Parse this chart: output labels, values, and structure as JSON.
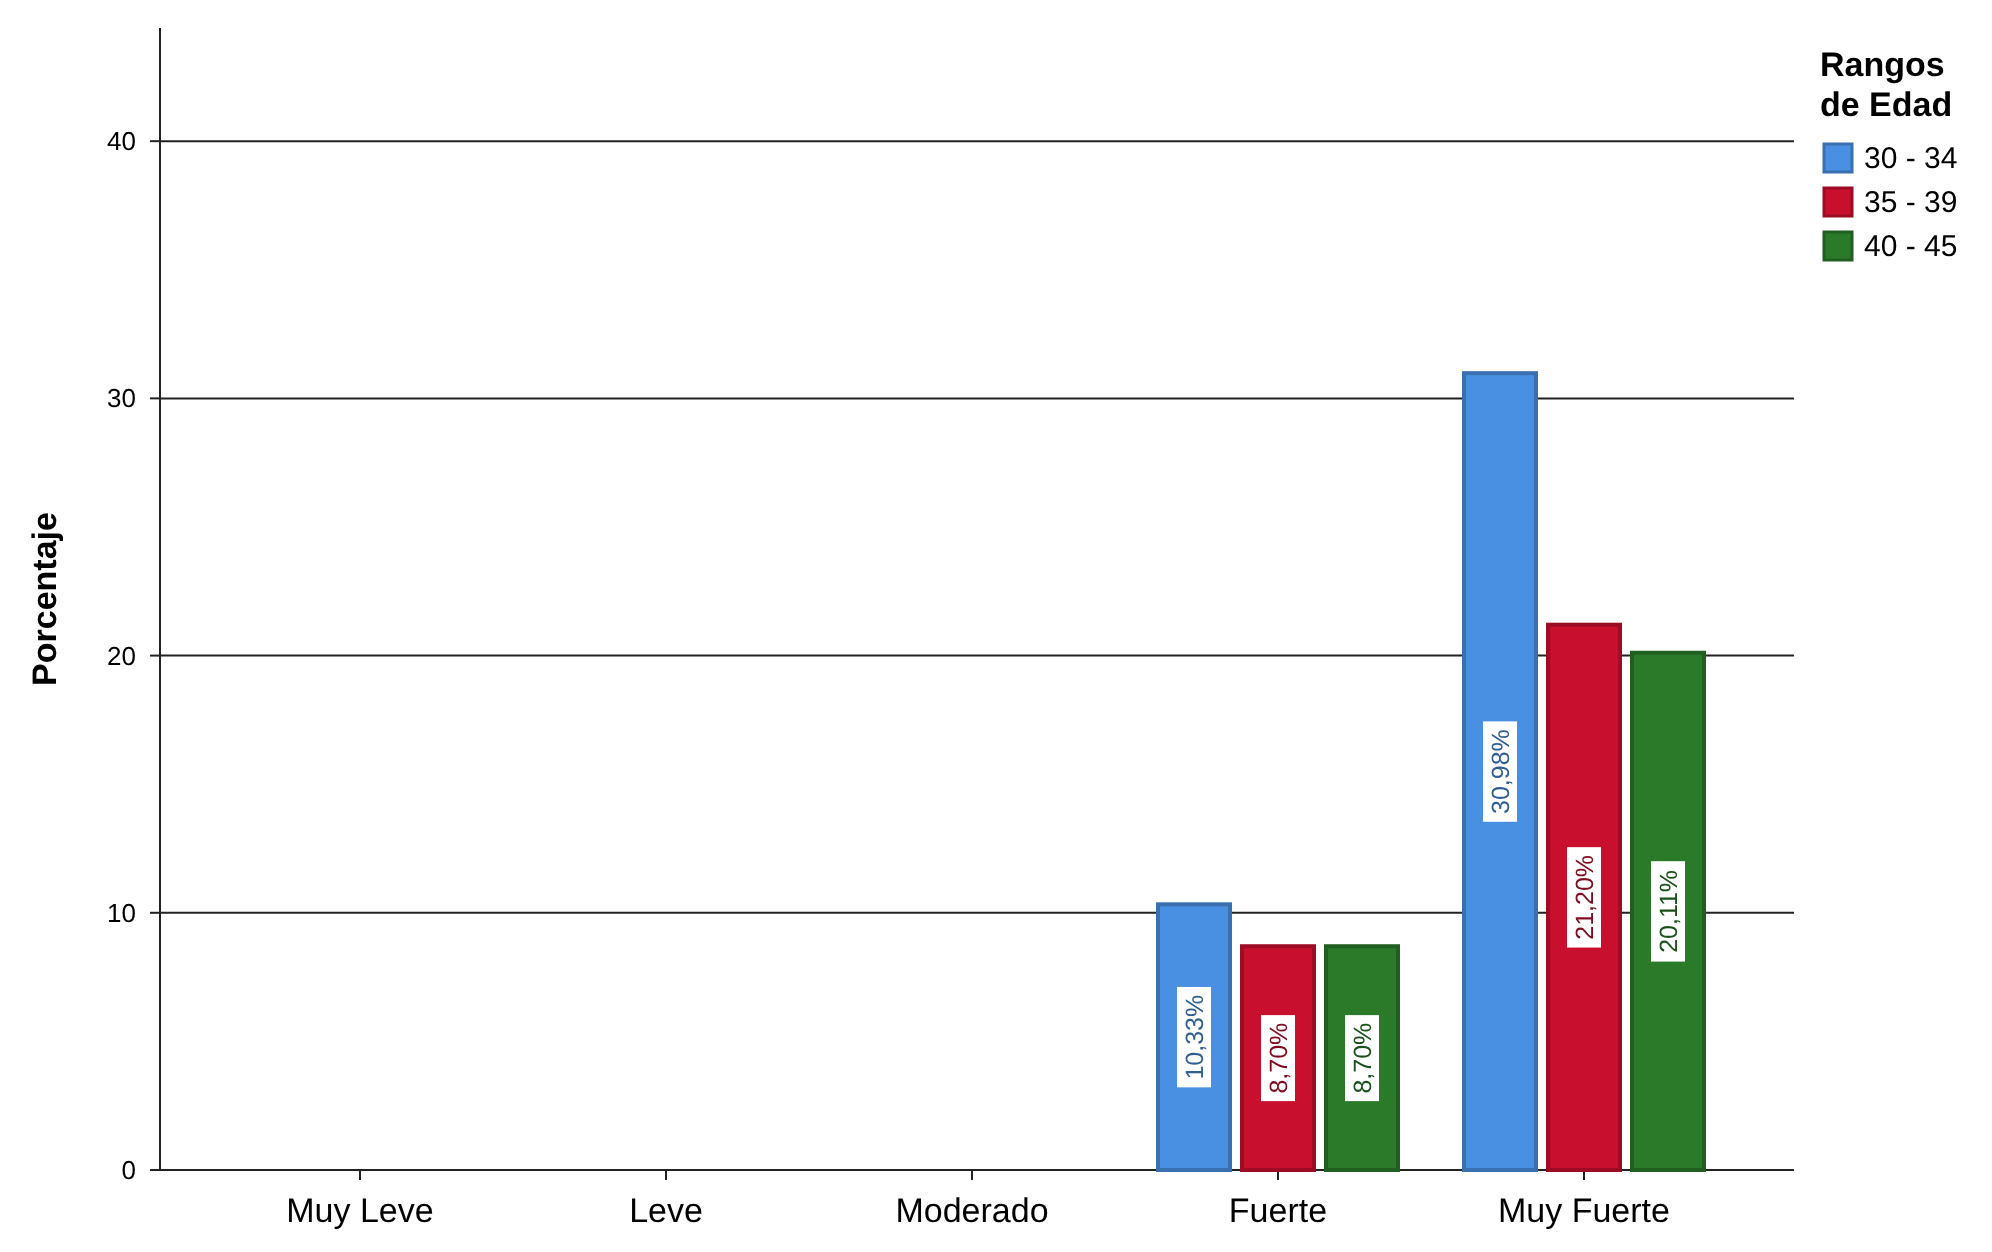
{
  "chart_data": {
    "type": "bar",
    "ylabel": "Porcentaje",
    "legend_title": "Rangos de Edad",
    "legend": "top right",
    "grid": "y",
    "categories": [
      "Muy Leve",
      "Leve",
      "Moderado",
      "Fuerte",
      "Muy Fuerte"
    ],
    "ylim": [
      0,
      44.4
    ],
    "yticks": [
      0,
      10,
      20,
      30,
      40
    ],
    "series": [
      {
        "name": "30 - 34",
        "color": "#4a90e2",
        "values": [
          null,
          null,
          null,
          10.33,
          30.98
        ],
        "value_labels": [
          null,
          null,
          null,
          "10,33%",
          "30,98%"
        ]
      },
      {
        "name": "35 - 39",
        "color": "#c8102e",
        "values": [
          null,
          null,
          null,
          8.7,
          21.2
        ],
        "value_labels": [
          null,
          null,
          null,
          "8,70%",
          "21,20%"
        ]
      },
      {
        "name": "40 - 45",
        "color": "#2a7a2a",
        "values": [
          null,
          null,
          null,
          8.7,
          20.11
        ],
        "value_labels": [
          null,
          null,
          null,
          "8,70%",
          "20,11%"
        ]
      }
    ]
  }
}
